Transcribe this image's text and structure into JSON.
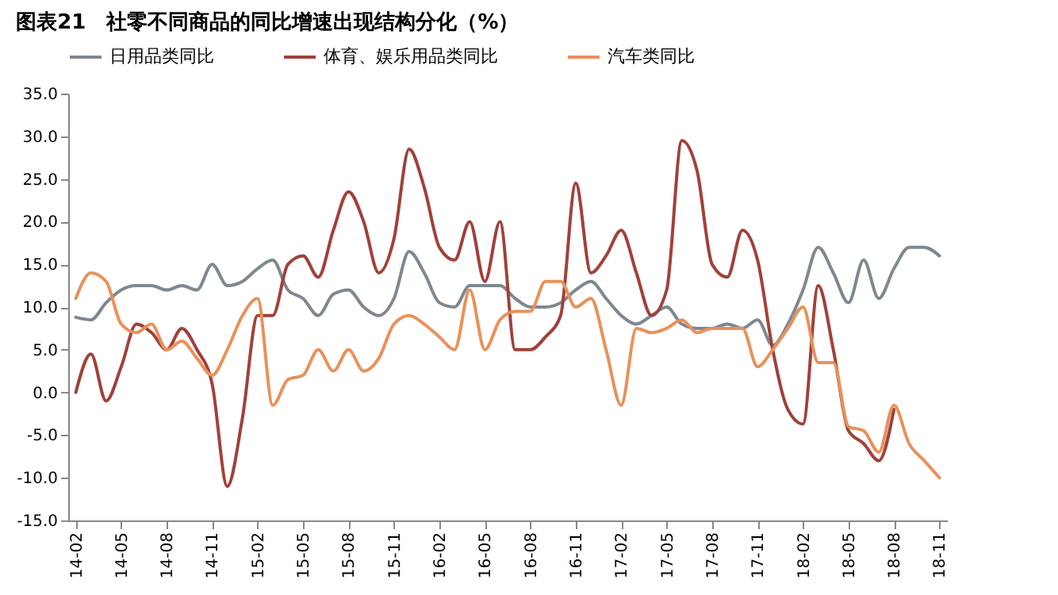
{
  "chart_data": {
    "type": "line",
    "title": "图表21　社零不同商品的同比增速出现结构分化（%）",
    "categories": [
      "14-02",
      null,
      null,
      "14-05",
      null,
      null,
      "14-08",
      null,
      null,
      "14-11",
      null,
      null,
      "15-02",
      null,
      null,
      "15-05",
      null,
      null,
      "15-08",
      null,
      null,
      "15-11",
      null,
      null,
      "16-02",
      null,
      null,
      "16-05",
      null,
      null,
      "16-08",
      null,
      null,
      "16-11",
      null,
      null,
      "17-02",
      null,
      null,
      "17-05",
      null,
      null,
      "17-08",
      null,
      null,
      "17-11",
      null,
      null,
      "18-02",
      null,
      null,
      "18-05",
      null,
      null,
      "18-08",
      null,
      null,
      "18-11"
    ],
    "series": [
      {
        "name": "日用品类同比",
        "color": "#7f8790",
        "values": [
          8.8,
          8.5,
          10.5,
          12,
          12.5,
          12.5,
          12,
          12.5,
          12,
          15,
          12.5,
          13,
          14.5,
          15.5,
          12,
          11,
          9,
          11.5,
          12,
          10,
          9,
          11,
          16.5,
          14,
          10.5,
          10,
          12.5,
          12.5,
          12.5,
          11,
          10,
          10,
          10.5,
          12,
          13,
          11,
          9,
          8,
          9,
          10,
          8,
          7.5,
          7.5,
          8,
          7.5,
          8.5,
          5.5,
          8,
          12,
          17,
          14,
          10.5,
          15.5,
          11,
          14.5,
          17,
          17,
          16
        ]
      },
      {
        "name": "体育、娱乐用品类同比",
        "color": "#a0413a",
        "values": [
          0,
          4.5,
          -1,
          3,
          8,
          7,
          5,
          7.5,
          5,
          1,
          -11,
          -3,
          9,
          9,
          15,
          16,
          13.5,
          19,
          23.5,
          20,
          14,
          18,
          28.5,
          24,
          17,
          15.5,
          20,
          13,
          20,
          5,
          5,
          6.5,
          9,
          24.5,
          14,
          16,
          19,
          14,
          9,
          12,
          29.5,
          26,
          15,
          13.5,
          19,
          15.5,
          5,
          -2,
          -3.7,
          12.5,
          5,
          -4.5,
          -6,
          -8,
          -2,
          null,
          null,
          null
        ]
      },
      {
        "name": "汽车类同比",
        "color": "#e8915a",
        "values": [
          11,
          14,
          13,
          8,
          7,
          8,
          5,
          6,
          4,
          2,
          5,
          9,
          11,
          -1.5,
          1.5,
          2,
          5,
          2.5,
          5,
          2.5,
          4,
          8,
          9,
          8,
          6.5,
          5,
          12,
          5,
          8.5,
          9.5,
          9.5,
          13,
          13,
          10,
          11,
          5,
          -1.5,
          7.5,
          7,
          7.5,
          8.5,
          7,
          7.5,
          7.5,
          7.5,
          3,
          5,
          7.5,
          10,
          3.5,
          3.5,
          -4,
          -4.5,
          -7,
          -1.5,
          -6,
          -8,
          -10
        ]
      }
    ],
    "ylim": [
      -15,
      35
    ],
    "yticks": [
      {
        "value": -15,
        "label": "-15.0"
      },
      {
        "value": -10,
        "label": "-10.0"
      },
      {
        "value": -5,
        "label": "-5.0"
      },
      {
        "value": 0,
        "label": "0.0"
      },
      {
        "value": 5,
        "label": "5.0"
      },
      {
        "value": 10,
        "label": "10.0"
      },
      {
        "value": 15,
        "label": "15.0"
      },
      {
        "value": 20,
        "label": "20.0"
      },
      {
        "value": 25,
        "label": "25.0"
      },
      {
        "value": 30,
        "label": "30.0"
      },
      {
        "value": 35,
        "label": "35.0"
      }
    ],
    "grid": false,
    "legend": "top",
    "line_style": "solid",
    "marker": "none"
  }
}
